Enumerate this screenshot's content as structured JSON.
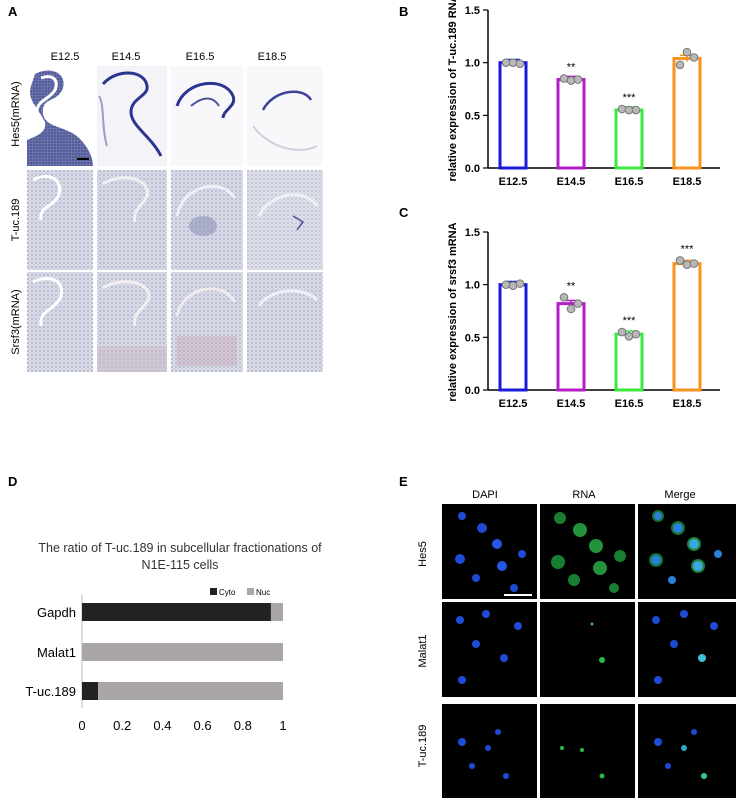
{
  "panel_labels": {
    "A": "A",
    "B": "B",
    "C": "C",
    "D": "D",
    "E": "E"
  },
  "panel_a": {
    "columns": [
      "E12.5",
      "E14.5",
      "E16.5",
      "E18.5"
    ],
    "rows": [
      "Hes5(mRNA)",
      "T-uc.189",
      "Srsf3(mRNA)"
    ]
  },
  "panel_e": {
    "columns": [
      "DAPI",
      "RNA",
      "Merge"
    ],
    "rows": [
      "Hes5",
      "Malat1",
      "T-uc.189"
    ]
  },
  "chart_data": [
    {
      "id": "B",
      "type": "bar",
      "categories": [
        "E12.5",
        "E14.5",
        "E16.5",
        "E18.5"
      ],
      "values": [
        1.0,
        0.84,
        0.55,
        1.04
      ],
      "points": [
        [
          1.0,
          1.0,
          0.99
        ],
        [
          0.85,
          0.83,
          0.84
        ],
        [
          0.56,
          0.55,
          0.55
        ],
        [
          0.98,
          1.1,
          1.05
        ]
      ],
      "significance": [
        "",
        "**",
        "***",
        ""
      ],
      "ylabel": "relative expression of T-uc.189 RNA",
      "ylim": [
        0,
        1.5
      ],
      "yticks": [
        "0.0",
        "0.5",
        "1.0",
        "1.5"
      ],
      "colors": [
        "#1a1adb",
        "#b51cc8",
        "#3de83d",
        "#f7931e"
      ]
    },
    {
      "id": "C",
      "type": "bar",
      "categories": [
        "E12.5",
        "E14.5",
        "E16.5",
        "E18.5"
      ],
      "values": [
        1.0,
        0.82,
        0.53,
        1.2
      ],
      "points": [
        [
          1.0,
          0.99,
          1.01
        ],
        [
          0.88,
          0.77,
          0.82
        ],
        [
          0.55,
          0.51,
          0.53
        ],
        [
          1.23,
          1.19,
          1.2
        ]
      ],
      "significance": [
        "",
        "**",
        "***",
        "***"
      ],
      "ylabel": "relative expression of srsf3 mRNA",
      "ylim": [
        0,
        1.5
      ],
      "yticks": [
        "0.0",
        "0.5",
        "1.0",
        "1.5"
      ],
      "colors": [
        "#1a1adb",
        "#b51cc8",
        "#3de83d",
        "#f7931e"
      ]
    },
    {
      "id": "D",
      "type": "bar",
      "title": "The ratio of T-uc.189 in subcellular fractionations of N1E-115 cells",
      "categories": [
        "Gapdh",
        "Malat1",
        "T-uc.189"
      ],
      "series": [
        {
          "name": "Cyto",
          "values": [
            0.94,
            0.0,
            0.08
          ],
          "color": "#222222"
        },
        {
          "name": "Nuc",
          "values": [
            0.06,
            1.0,
            0.92
          ],
          "color": "#aaa6a6"
        }
      ],
      "xticks": [
        "0",
        "0.2",
        "0.4",
        "0.6",
        "0.8",
        "1"
      ],
      "xlim": [
        0,
        1
      ],
      "legend": "top-right"
    }
  ]
}
